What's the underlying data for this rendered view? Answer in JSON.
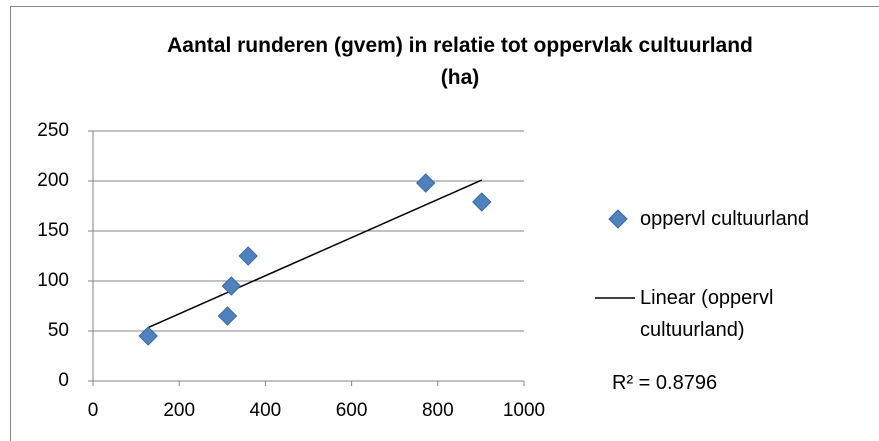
{
  "chart_data": {
    "type": "scatter",
    "title": "Aantal runderen (gvem) in relatie tot oppervlak cultuurland (ha)",
    "series": [
      {
        "name": "oppervl cultuurland",
        "color": "#4f81bd",
        "x": [
          128,
          312,
          321,
          360,
          772,
          902
        ],
        "values": [
          45,
          65,
          95,
          125,
          198,
          179
        ]
      }
    ],
    "trendline": {
      "type": "linear",
      "label": "Linear (oppervl cultuurland)",
      "color": "#000000",
      "r_squared_label": "R² = 0.8796"
    },
    "xlim": [
      0,
      1000
    ],
    "xticks": [
      0,
      200,
      400,
      600,
      800,
      1000
    ],
    "ylim": [
      0,
      250
    ],
    "yticks": [
      0,
      50,
      100,
      150,
      200,
      250
    ],
    "grid": true,
    "legend": "right"
  }
}
